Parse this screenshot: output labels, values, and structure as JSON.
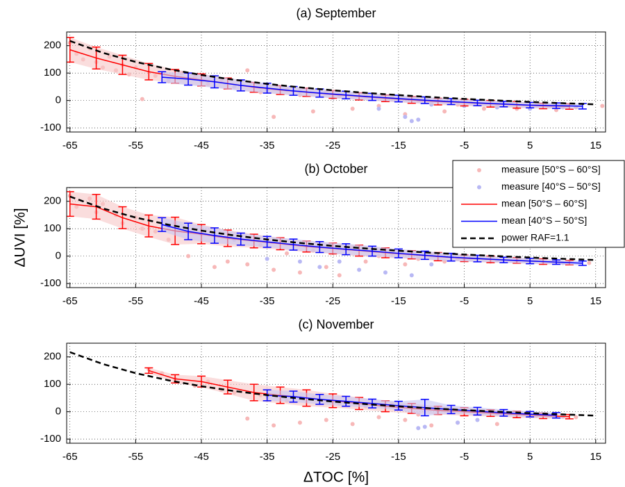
{
  "chart_data": [
    {
      "type": "line",
      "title": "(a) September",
      "xlim": [
        -65.5,
        16.5
      ],
      "ylim": [
        -115,
        250
      ],
      "xticks": [
        -65,
        -55,
        -45,
        -35,
        -25,
        -15,
        -5,
        5,
        15
      ],
      "yticks": [
        -100,
        0,
        100,
        200
      ],
      "grid": true,
      "legend": false,
      "series": [
        {
          "name": "measure [50°S – 60°S]",
          "kind": "scatter",
          "color": "#f7b8b8",
          "x": [
            -65,
            -64,
            -63,
            -62,
            -61,
            -60,
            -59,
            -58,
            -57,
            -56,
            -55,
            -54,
            -52,
            -50,
            -48,
            -46,
            -44,
            -42,
            -40,
            -38,
            -36,
            -34,
            -32,
            -30,
            -28,
            -26,
            -24,
            -22,
            -20,
            -18,
            -16,
            -14,
            -12,
            -10,
            -8,
            -6,
            -4,
            -2,
            0,
            3,
            6,
            9,
            12,
            16
          ],
          "values": [
            210,
            170,
            150,
            190,
            140,
            120,
            160,
            110,
            130,
            95,
            120,
            5,
            90,
            70,
            100,
            85,
            60,
            75,
            50,
            110,
            30,
            -60,
            40,
            20,
            -40,
            30,
            15,
            -30,
            20,
            -20,
            10,
            -50,
            0,
            -10,
            -40,
            -15,
            0,
            -30,
            -20,
            -30,
            -15,
            -35,
            -25,
            -20
          ]
        },
        {
          "name": "measure [40°S – 50°S]",
          "kind": "scatter",
          "color": "#b8b8f4",
          "x": [
            -50,
            -45,
            -40,
            -35,
            -30,
            -25,
            -18,
            -14,
            -13,
            -12,
            -10,
            -5,
            0,
            5,
            10
          ],
          "values": [
            80,
            70,
            50,
            40,
            35,
            10,
            -30,
            -60,
            -75,
            -70,
            -15,
            -20,
            -25,
            -30,
            -25
          ]
        },
        {
          "name": "mean [50°S – 60°S]",
          "kind": "errorbar",
          "color": "#ff0000",
          "band": "#f7c6c6",
          "x": [
            -65,
            -61,
            -57,
            -53,
            -49,
            -45,
            -41,
            -37,
            -33,
            -29,
            -25,
            -21,
            -17,
            -13,
            -9,
            -5,
            -1,
            3,
            7,
            11
          ],
          "values": [
            185,
            155,
            130,
            105,
            88,
            75,
            62,
            48,
            38,
            30,
            22,
            15,
            8,
            2,
            -4,
            -8,
            -12,
            -16,
            -20,
            -22
          ],
          "errors": [
            45,
            40,
            35,
            30,
            25,
            22,
            20,
            18,
            16,
            15,
            14,
            13,
            12,
            12,
            12,
            12,
            12,
            12,
            10,
            10
          ]
        },
        {
          "name": "mean [40°S – 50°S]",
          "kind": "errorbar",
          "color": "#0000ff",
          "band": "#c6c6f4",
          "x": [
            -51,
            -47,
            -43,
            -39,
            -35,
            -31,
            -27,
            -23,
            -19,
            -15,
            -11,
            -7,
            -3,
            1,
            5,
            9,
            13
          ],
          "values": [
            85,
            78,
            68,
            55,
            45,
            35,
            27,
            20,
            13,
            7,
            1,
            -4,
            -9,
            -13,
            -17,
            -19,
            -21
          ],
          "errors": [
            20,
            22,
            22,
            20,
            18,
            16,
            15,
            14,
            13,
            12,
            12,
            11,
            10,
            10,
            10,
            10,
            10
          ]
        },
        {
          "name": "power RAF=1.1",
          "kind": "line",
          "dashed": true,
          "color": "#000000",
          "x": [
            -65,
            -60,
            -55,
            -50,
            -45,
            -40,
            -35,
            -30,
            -25,
            -20,
            -15,
            -10,
            -5,
            0,
            5,
            10,
            15
          ],
          "values": [
            217.3,
            174,
            140.7,
            114.4,
            93,
            75.4,
            60.6,
            48,
            37.2,
            27.8,
            19.6,
            12.3,
            5.8,
            0,
            -5.2,
            -9.9,
            -14.3
          ]
        }
      ]
    },
    {
      "type": "line",
      "title": "(b) October",
      "ylabel": "ΔUVI [%]",
      "xlim": [
        -65.5,
        16.5
      ],
      "ylim": [
        -115,
        250
      ],
      "xticks": [
        -65,
        -55,
        -45,
        -35,
        -25,
        -15,
        -5,
        5,
        15
      ],
      "yticks": [
        -100,
        0,
        100,
        200
      ],
      "grid": true,
      "legend": true,
      "legend_loc": "upper right",
      "series": [
        {
          "name": "measure [50°S – 60°S]",
          "kind": "scatter",
          "color": "#f7b8b8",
          "x": [
            -65,
            -64,
            -62,
            -61,
            -60,
            -58,
            -57,
            -55,
            -54,
            -52,
            -50,
            -49,
            -47,
            -45,
            -43,
            -41,
            -40,
            -38,
            -36,
            -34,
            -32,
            -30,
            -28,
            -26,
            -24,
            -22,
            -20,
            -18,
            -16,
            -14,
            -12,
            -10,
            -8,
            -6,
            -4,
            -1,
            3,
            7,
            11,
            14
          ],
          "values": [
            220,
            180,
            210,
            160,
            190,
            150,
            120,
            140,
            100,
            90,
            60,
            120,
            0,
            80,
            -40,
            -20,
            60,
            -30,
            40,
            -50,
            10,
            -60,
            20,
            -40,
            -70,
            30,
            -20,
            0,
            10,
            -30,
            -10,
            5,
            -20,
            -10,
            -5,
            -20,
            -15,
            -25,
            -20,
            -25
          ]
        },
        {
          "name": "measure [40°S – 50°S]",
          "kind": "scatter",
          "color": "#b8b8f4",
          "x": [
            -50,
            -45,
            -40,
            -35,
            -30,
            -27,
            -24,
            -21,
            -17,
            -13,
            -10,
            -5,
            0,
            5,
            10
          ],
          "values": [
            100,
            80,
            60,
            -10,
            -20,
            -40,
            -20,
            -50,
            -60,
            -70,
            -30,
            -10,
            -15,
            -20,
            -25
          ]
        },
        {
          "name": "mean [50°S – 60°S]",
          "kind": "errorbar",
          "color": "#ff0000",
          "band": "#f7c6c6",
          "x": [
            -65,
            -61,
            -57,
            -53,
            -49,
            -45,
            -41,
            -37,
            -33,
            -29,
            -25,
            -21,
            -17,
            -13,
            -9,
            -5,
            -1,
            3,
            7,
            11
          ],
          "values": [
            190,
            180,
            140,
            110,
            92,
            80,
            65,
            55,
            45,
            35,
            28,
            20,
            12,
            5,
            -2,
            -8,
            -12,
            -16,
            -20,
            -24
          ],
          "errors": [
            45,
            45,
            40,
            40,
            50,
            35,
            30,
            25,
            22,
            20,
            20,
            20,
            18,
            15,
            15,
            12,
            12,
            10,
            10,
            8
          ]
        },
        {
          "name": "mean [40°S – 50°S]",
          "kind": "errorbar",
          "color": "#0000ff",
          "band": "#c6c6f4",
          "x": [
            -51,
            -47,
            -43,
            -39,
            -35,
            -31,
            -27,
            -23,
            -19,
            -15,
            -11,
            -7,
            -3,
            1,
            5,
            9,
            13
          ],
          "values": [
            115,
            90,
            75,
            62,
            52,
            42,
            33,
            25,
            18,
            10,
            3,
            -4,
            -9,
            -14,
            -18,
            -22,
            -26
          ],
          "errors": [
            25,
            30,
            28,
            22,
            20,
            20,
            20,
            20,
            18,
            16,
            15,
            14,
            12,
            10,
            10,
            8,
            8
          ]
        },
        {
          "name": "power RAF=1.1",
          "kind": "line",
          "dashed": true,
          "color": "#000000",
          "x": [
            -65,
            -60,
            -55,
            -50,
            -45,
            -40,
            -35,
            -30,
            -25,
            -20,
            -15,
            -10,
            -5,
            0,
            5,
            10,
            15
          ],
          "values": [
            217.3,
            174,
            140.7,
            114.4,
            93,
            75.4,
            60.6,
            48,
            37.2,
            27.8,
            19.6,
            12.3,
            5.8,
            0,
            -5.2,
            -9.9,
            -14.3
          ]
        }
      ]
    },
    {
      "type": "line",
      "title": "(c) November",
      "xlabel": "ΔTOC [%]",
      "xlim": [
        -65.5,
        16.5
      ],
      "ylim": [
        -115,
        250
      ],
      "xticks": [
        -65,
        -55,
        -45,
        -35,
        -25,
        -15,
        -5,
        5,
        15
      ],
      "yticks": [
        -100,
        0,
        100,
        200
      ],
      "grid": true,
      "legend": false,
      "series": [
        {
          "name": "measure [50°S – 60°S]",
          "kind": "scatter",
          "color": "#f7b8b8",
          "x": [
            -53,
            -51,
            -49,
            -46,
            -44,
            -42,
            -40,
            -38,
            -36,
            -34,
            -32,
            -30,
            -28,
            -26,
            -24,
            -22,
            -20,
            -18,
            -16,
            -14,
            -12,
            -10,
            -8,
            -6,
            -3,
            0,
            3,
            6,
            9,
            12
          ],
          "values": [
            155,
            140,
            120,
            95,
            110,
            80,
            70,
            -25,
            60,
            -50,
            40,
            -40,
            50,
            -30,
            30,
            -45,
            20,
            -20,
            25,
            -30,
            -10,
            -50,
            5,
            -40,
            0,
            -45,
            -10,
            -15,
            -15,
            -20
          ]
        },
        {
          "name": "measure [40°S – 50°S]",
          "kind": "scatter",
          "color": "#b8b8f4",
          "x": [
            -35,
            -30,
            -25,
            -20,
            -15,
            -12,
            -11,
            -6,
            -3,
            0,
            5,
            10
          ],
          "values": [
            60,
            50,
            40,
            25,
            10,
            -60,
            -55,
            -40,
            -30,
            -5,
            -15,
            -18
          ]
        },
        {
          "name": "mean [50°S – 60°S]",
          "kind": "errorbar",
          "color": "#ff0000",
          "band": "#f7c6c6",
          "x": [
            -53,
            -49,
            -45,
            -41,
            -37,
            -33,
            -29,
            -25,
            -21,
            -17,
            -13,
            -9,
            -5,
            -1,
            3,
            7,
            11
          ],
          "values": [
            150,
            120,
            110,
            90,
            70,
            60,
            50,
            40,
            30,
            20,
            12,
            5,
            0,
            -5,
            -10,
            -15,
            -18
          ],
          "errors": [
            10,
            15,
            20,
            25,
            30,
            30,
            30,
            25,
            22,
            20,
            18,
            15,
            15,
            12,
            12,
            10,
            8
          ]
        },
        {
          "name": "mean [40°S – 50°S]",
          "kind": "errorbar",
          "color": "#0000ff",
          "band": "#c6c6f4",
          "x": [
            -35,
            -31,
            -27,
            -23,
            -19,
            -15,
            -11,
            -7,
            -3,
            1,
            5,
            9
          ],
          "values": [
            60,
            55,
            45,
            38,
            30,
            22,
            15,
            8,
            2,
            -4,
            -9,
            -13
          ],
          "errors": [
            20,
            20,
            18,
            18,
            16,
            16,
            30,
            15,
            14,
            12,
            10,
            10
          ]
        },
        {
          "name": "power RAF=1.1",
          "kind": "line",
          "dashed": true,
          "color": "#000000",
          "x": [
            -65,
            -60,
            -55,
            -50,
            -45,
            -40,
            -35,
            -30,
            -25,
            -20,
            -15,
            -10,
            -5,
            0,
            5,
            10,
            15
          ],
          "values": [
            217.3,
            174,
            140.7,
            114.4,
            93,
            75.4,
            60.6,
            48,
            37.2,
            27.8,
            19.6,
            12.3,
            5.8,
            0,
            -5.2,
            -9.9,
            -14.3
          ]
        }
      ]
    }
  ]
}
